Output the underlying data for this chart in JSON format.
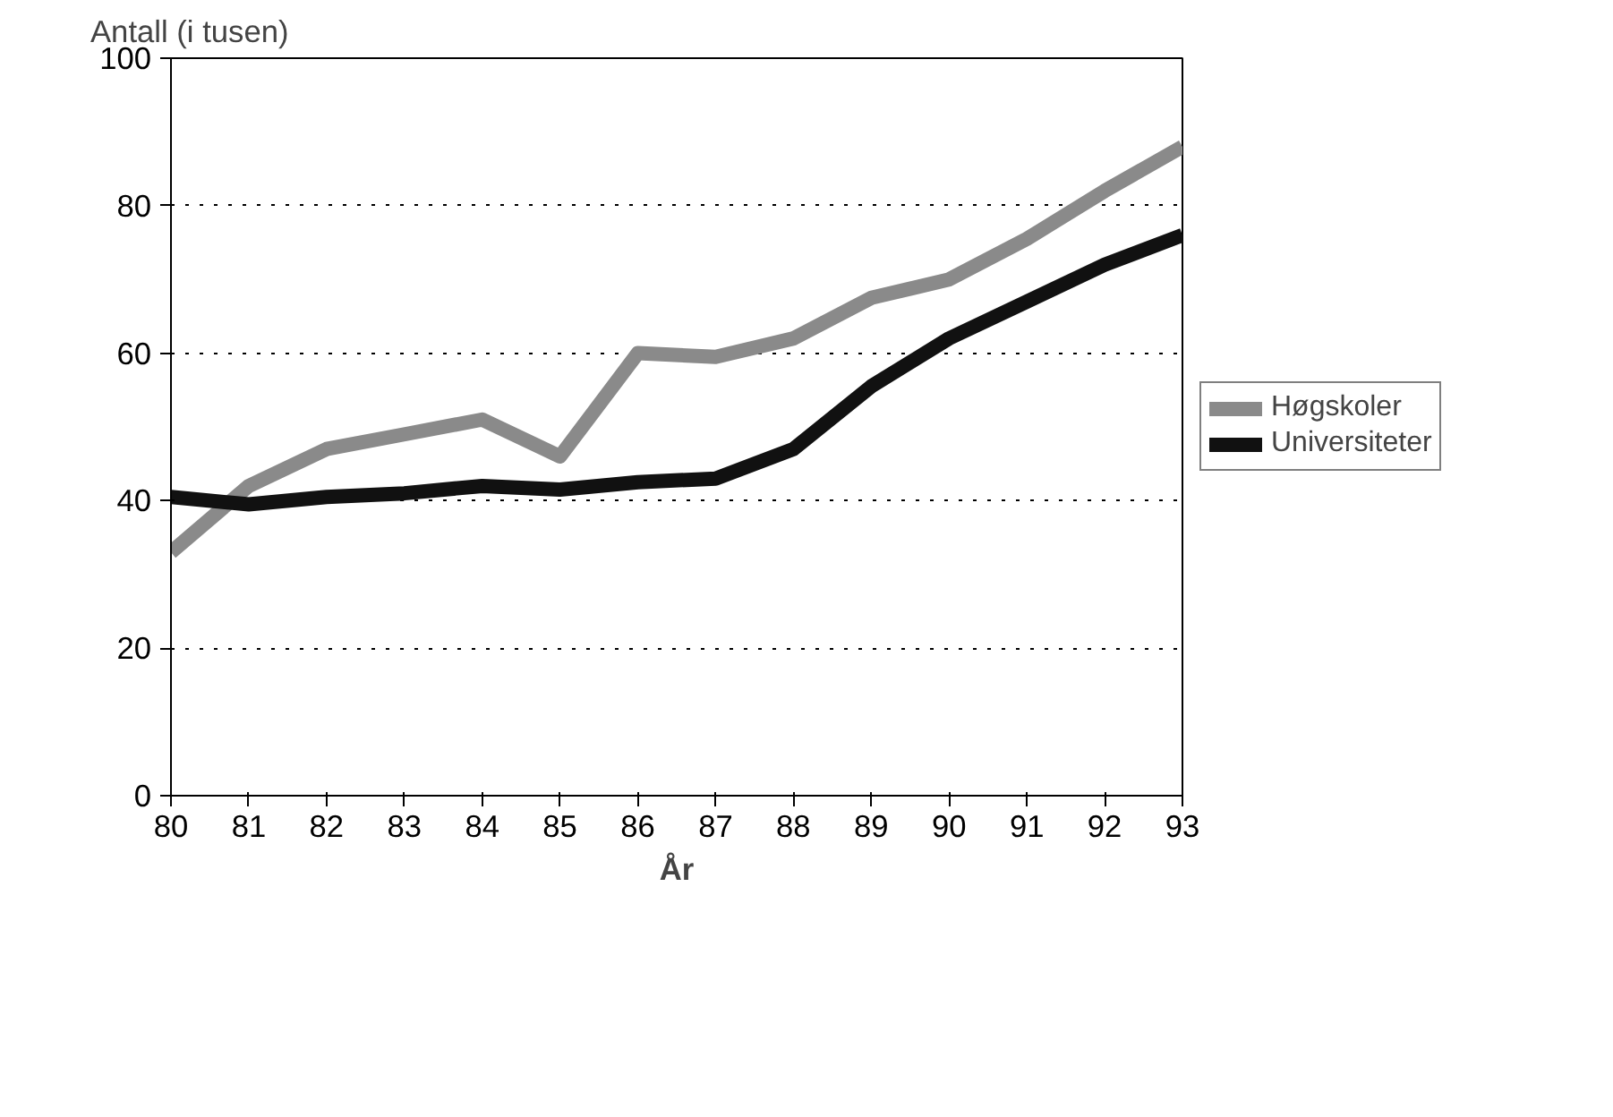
{
  "chart_data": {
    "type": "line",
    "xlabel": "År",
    "ylabel": "Antall (i tusen)",
    "x": [
      80,
      81,
      82,
      83,
      84,
      85,
      86,
      87,
      88,
      89,
      90,
      91,
      92,
      93
    ],
    "series": [
      {
        "name": "Høgskoler",
        "color": "#8a8a8a",
        "values": [
          33,
          42,
          47,
          49,
          51,
          46,
          60,
          59.5,
          62,
          67.5,
          70,
          75.5,
          82,
          88
        ]
      },
      {
        "name": "Universiteter",
        "color": "#111111",
        "values": [
          40.5,
          39.5,
          40.5,
          41,
          42,
          41.5,
          42.5,
          43,
          47,
          55.5,
          62,
          67,
          72,
          76
        ]
      }
    ],
    "xlim": [
      80,
      93
    ],
    "xticks": [
      80,
      81,
      82,
      83,
      84,
      85,
      86,
      87,
      88,
      89,
      90,
      91,
      92,
      93
    ],
    "ylim": [
      0,
      100
    ],
    "yticks": [
      0,
      20,
      40,
      60,
      80,
      100
    ],
    "grid": "y",
    "legend": "right",
    "marker": "none",
    "line_style": "solid"
  }
}
